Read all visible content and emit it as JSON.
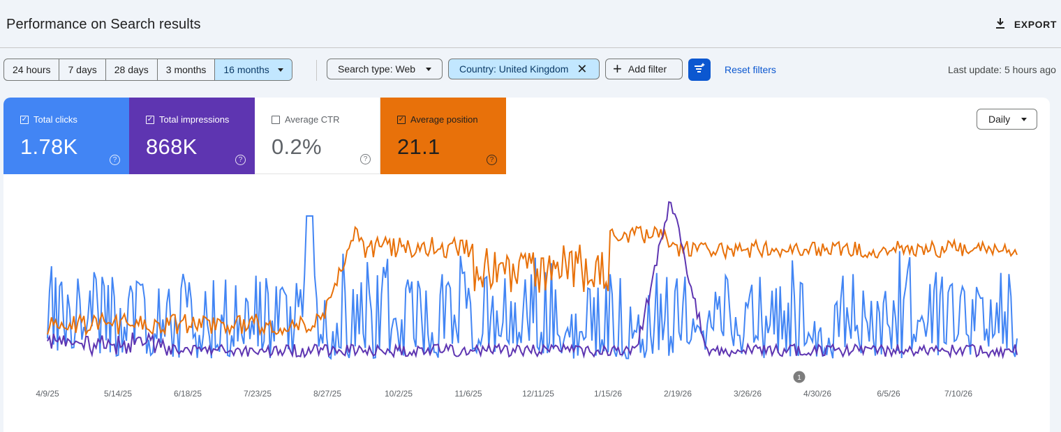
{
  "header": {
    "title": "Performance on Search results",
    "export_label": "EXPORT"
  },
  "date_range": {
    "options": [
      "24 hours",
      "7 days",
      "28 days",
      "3 months",
      "16 months"
    ],
    "selected": "16 months"
  },
  "filters": {
    "search_type": "Search type: Web",
    "country": "Country: United Kingdom",
    "add_filter": "Add filter",
    "reset": "Reset filters",
    "last_update": "Last update: 5 hours ago"
  },
  "metrics": {
    "clicks": {
      "label": "Total clicks",
      "value": "1.78K",
      "checked": true,
      "color": "#4285f4"
    },
    "impressions": {
      "label": "Total impressions",
      "value": "868K",
      "checked": true,
      "color": "#5e35b1"
    },
    "ctr": {
      "label": "Average CTR",
      "value": "0.2%",
      "checked": false
    },
    "position": {
      "label": "Average position",
      "value": "21.1",
      "checked": true,
      "color": "#e8710a"
    }
  },
  "granularity": "Daily",
  "chart_data": {
    "type": "line",
    "x_ticks": [
      "4/9/25",
      "5/14/25",
      "6/18/25",
      "7/23/25",
      "8/27/25",
      "10/2/25",
      "11/6/25",
      "12/11/25",
      "1/15/26",
      "2/19/26",
      "3/26/26",
      "4/30/26",
      "6/5/26",
      "7/10/26"
    ],
    "annotation": "1",
    "grid": false,
    "colors": {
      "clicks": "#4285f4",
      "impressions": "#5e35b1",
      "position": "#e8710a"
    }
  }
}
